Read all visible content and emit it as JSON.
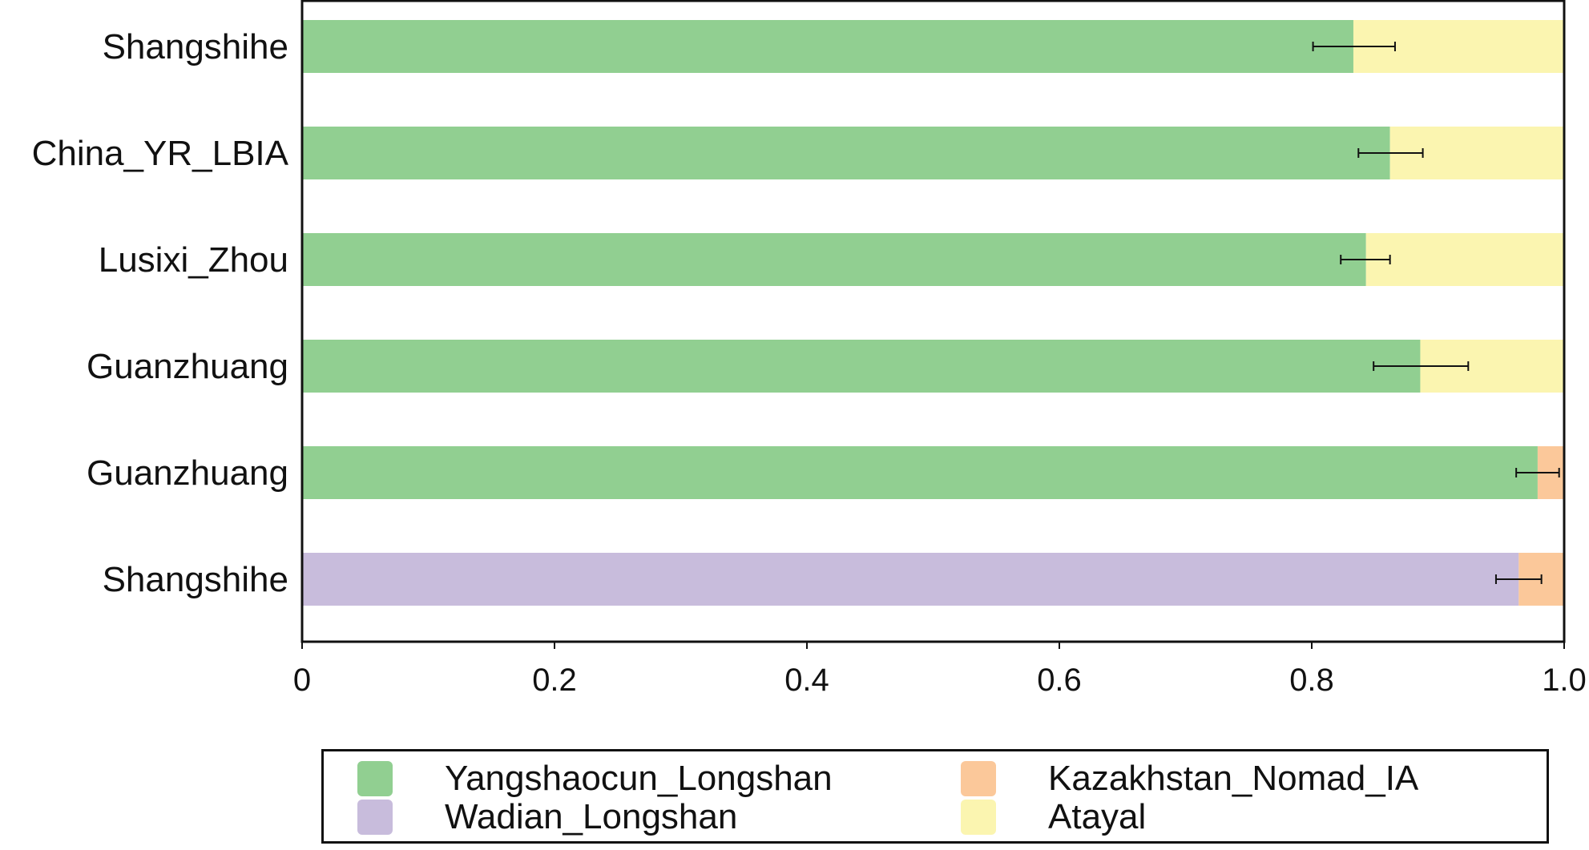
{
  "chart_data": {
    "type": "bar",
    "orientation": "horizontal",
    "stacked": true,
    "categories": [
      "Shangshihe",
      "China_YR_LBIA",
      "Lusixi_Zhou",
      "Guanzhuang",
      "Guanzhuang",
      "Shangshihe"
    ],
    "series": [
      {
        "name": "Yangshaocun_Longshan",
        "color": "#91cf91",
        "values": [
          0.833,
          0.862,
          0.843,
          0.886,
          0.979,
          0
        ]
      },
      {
        "name": "Wadian_Longshan",
        "color": "#c8bcdc",
        "values": [
          0,
          0,
          0,
          0,
          0,
          0.964
        ]
      },
      {
        "name": "Kazakhstan_Nomad_IA",
        "color": "#fbc89a",
        "values": [
          0,
          0,
          0,
          0,
          0.021,
          0.036
        ]
      },
      {
        "name": "Atayal",
        "color": "#fbf5b0",
        "values": [
          0.167,
          0.138,
          0.157,
          0.114,
          0,
          0
        ]
      }
    ],
    "error_bars": [
      {
        "center": 0.833,
        "low": 0.801,
        "high": 0.866
      },
      {
        "center": 0.862,
        "low": 0.837,
        "high": 0.888
      },
      {
        "center": 0.843,
        "low": 0.823,
        "high": 0.862
      },
      {
        "center": 0.886,
        "low": 0.849,
        "high": 0.924
      },
      {
        "center": 0.979,
        "low": 0.962,
        "high": 0.996
      },
      {
        "center": 0.964,
        "low": 0.946,
        "high": 0.982
      }
    ],
    "xlim": [
      0,
      1.0
    ],
    "xticks": [
      0,
      0.2,
      0.4,
      0.6,
      0.8,
      1.0
    ],
    "xtick_labels": [
      "0",
      "0.2",
      "0.4",
      "0.6",
      "0.8",
      "1.0"
    ],
    "grid": false,
    "legend": {
      "placement": "bottom",
      "columns": 2,
      "entries": [
        "Yangshaocun_Longshan",
        "Kazakhstan_Nomad_IA",
        "Wadian_Longshan",
        "Atayal"
      ]
    }
  }
}
